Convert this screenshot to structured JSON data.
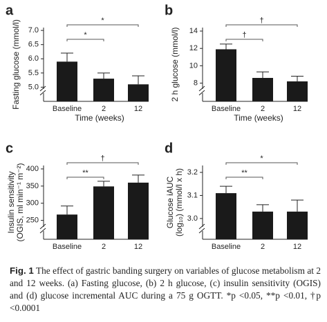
{
  "chart_data": [
    {
      "type": "bar",
      "panel": "a",
      "ylabel": [
        "Fasting glucose (mmol/l)"
      ],
      "xlabel": "Time (weeks)",
      "categories": [
        "Baseline",
        "2",
        "12"
      ],
      "values": [
        5.9,
        5.3,
        5.1
      ],
      "errors": [
        0.3,
        0.2,
        0.3
      ],
      "color": "#1a1a1a",
      "ylim": [
        4.5,
        7.1
      ],
      "yticks": [
        {
          "value": 5.0,
          "label": "5.0"
        },
        5.5,
        {
          "value": 6.0,
          "label": "6.0"
        },
        6.5,
        {
          "value": 7.0,
          "label": "7.0"
        }
      ],
      "brackets": [
        {
          "label": "*",
          "between": [
            "Baseline",
            "2"
          ]
        },
        {
          "label": "*",
          "between": [
            "Baseline",
            "12"
          ]
        }
      ]
    },
    {
      "type": "bar",
      "panel": "b",
      "ylabel": [
        "2 h glucose (mmol/l)"
      ],
      "xlabel": "Time (weeks)",
      "categories": [
        "Baseline",
        "2",
        "12"
      ],
      "values": [
        11.9,
        8.6,
        8.2
      ],
      "errors": [
        0.6,
        0.7,
        0.6
      ],
      "color": "#1a1a1a",
      "ylim": [
        5.9,
        14.4
      ],
      "yticks": [
        8,
        10,
        12,
        14
      ],
      "brackets": [
        {
          "label": "†",
          "between": [
            "Baseline",
            "2"
          ]
        },
        {
          "label": "†",
          "between": [
            "Baseline",
            "12"
          ]
        }
      ]
    },
    {
      "type": "bar",
      "panel": "c",
      "ylabel": [
        "Insulin sensitivity",
        "(OGIS, ml min⁻¹ m⁻²)"
      ],
      "xlabel": "",
      "categories": [
        "Baseline",
        "2",
        "12"
      ],
      "values": [
        267,
        349,
        360
      ],
      "errors": [
        25,
        15,
        22
      ],
      "color": "#1a1a1a",
      "ylim": [
        195,
        410
      ],
      "yticks": [
        250,
        300,
        350,
        400
      ],
      "brackets": [
        {
          "label": "**",
          "between": [
            "Baseline",
            "2"
          ]
        },
        {
          "label": "†",
          "between": [
            "Baseline",
            "12"
          ]
        }
      ]
    },
    {
      "type": "bar",
      "panel": "d",
      "ylabel": [
        "Glucose iAUC",
        "(log₁₀) (mmol/l x h)"
      ],
      "xlabel": "",
      "categories": [
        "Baseline",
        "2",
        "12"
      ],
      "values": [
        3.11,
        3.03,
        3.03
      ],
      "errors": [
        0.03,
        0.03,
        0.05
      ],
      "color": "#1a1a1a",
      "ylim": [
        2.91,
        3.23
      ],
      "yticks": [
        {
          "value": 3.0,
          "label": "3.0"
        },
        3.1,
        3.2
      ],
      "brackets": [
        {
          "label": "**",
          "between": [
            "Baseline",
            "2"
          ]
        },
        {
          "label": "*",
          "between": [
            "Baseline",
            "12"
          ]
        }
      ]
    }
  ],
  "caption": {
    "label": "Fig. 1",
    "text": "The effect of gastric banding surgery on variables of glucose metabolism at 2 and 12 weeks. (a) Fasting glucose, (b) 2 h glucose, (c) insulin sensitivity (OGIS) and (d) glucose incremental AUC during a 75 g OGTT. *p <0.05, **p <0.01, †p <0.0001"
  }
}
